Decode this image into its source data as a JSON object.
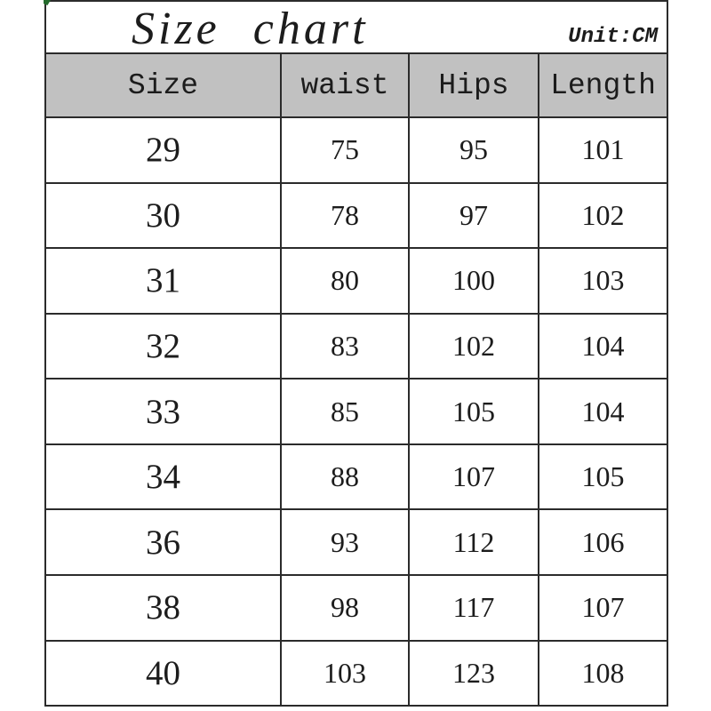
{
  "title": "Size chart",
  "unit_label": "Unit:CM",
  "colors": {
    "header_bg": "#c1c1c1",
    "border": "#2b2b2b",
    "text": "#1c1c1c",
    "accent_green": "#256b2d"
  },
  "chart_data": {
    "type": "table",
    "title": "Size chart",
    "unit": "CM",
    "columns": [
      "Size",
      "waist",
      "Hips",
      "Length"
    ],
    "rows": [
      [
        "29",
        "75",
        "95",
        "101"
      ],
      [
        "30",
        "78",
        "97",
        "102"
      ],
      [
        "31",
        "80",
        "100",
        "103"
      ],
      [
        "32",
        "83",
        "102",
        "104"
      ],
      [
        "33",
        "85",
        "105",
        "104"
      ],
      [
        "34",
        "88",
        "107",
        "105"
      ],
      [
        "36",
        "93",
        "112",
        "106"
      ],
      [
        "38",
        "98",
        "117",
        "107"
      ],
      [
        "40",
        "103",
        "123",
        "108"
      ]
    ]
  }
}
